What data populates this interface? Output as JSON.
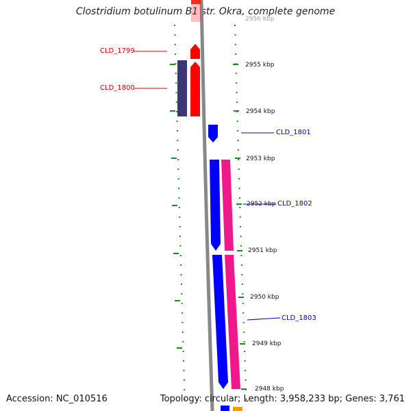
{
  "title": "Clostridium botulinum B1 str. Okra, complete genome",
  "accession_text": "Accession: NC_010516",
  "summary_text": "Topology: circular; Length: 3,958,233 bp; Genes: 3,761",
  "colors": {
    "backbone": "#888888",
    "reverse_cds": "#ff0000",
    "forward_cds": "#0000ff",
    "dark_feature": "#3b3678",
    "pink_feature": "#f0198c",
    "orange_feature": "#ff9900",
    "tick": "#1a8a1a",
    "reverse_label": "#cc0000",
    "forward_label": "#0000aa"
  },
  "ticks": [
    {
      "label": "2956 kbp",
      "partial": true
    },
    {
      "label": "2955 kbp"
    },
    {
      "label": "2954 kbp"
    },
    {
      "label": "2953 kbp"
    },
    {
      "label": "2952 kbp"
    },
    {
      "label": "2951 kbp"
    },
    {
      "label": "2950 kbp"
    },
    {
      "label": "2949 kbp"
    },
    {
      "label": "2948 kbp"
    }
  ],
  "genes": [
    {
      "name": "CLD_1799",
      "strand": "reverse"
    },
    {
      "name": "CLD_1800",
      "strand": "reverse"
    },
    {
      "name": "CLD_1801",
      "strand": "forward"
    },
    {
      "name": "CLD_1802",
      "strand": "forward"
    },
    {
      "name": "CLD_1803",
      "strand": "forward"
    }
  ]
}
